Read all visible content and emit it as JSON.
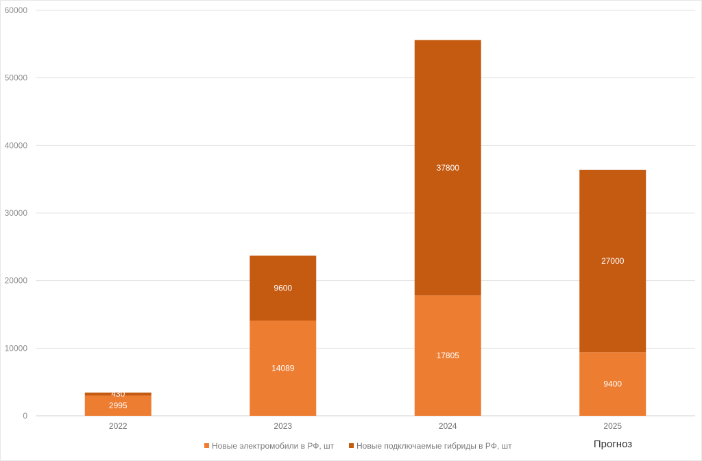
{
  "chart_data": {
    "type": "bar",
    "stacked": true,
    "categories": [
      "2022",
      "2023",
      "2024",
      "2025"
    ],
    "series": [
      {
        "name": "Новые электромобили в РФ, шт",
        "values": [
          2995,
          14089,
          17805,
          9400
        ],
        "color": "#ED7D31"
      },
      {
        "name": "Новые подключаемые гибриды в РФ, шт",
        "values": [
          430,
          9600,
          37800,
          27000
        ],
        "color": "#C55A11"
      }
    ],
    "ylim": [
      0,
      60000
    ],
    "yticks": [
      "0",
      "10000",
      "20000",
      "30000",
      "40000",
      "50000",
      "60000"
    ],
    "grid": true,
    "legend_position": "bottom",
    "annotation": "Прогноз",
    "title": "",
    "xlabel": "",
    "ylabel": ""
  }
}
